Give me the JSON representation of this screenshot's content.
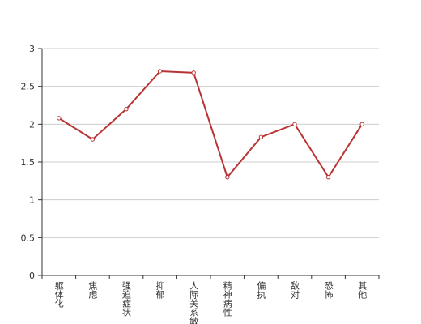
{
  "chart_data": {
    "type": "line",
    "categories": [
      "躯体化",
      "焦虑",
      "强迫症状",
      "抑郁",
      "人际关系敏感",
      "精神病性",
      "偏执",
      "敌对",
      "恐怖",
      "其他"
    ],
    "values": [
      2.08,
      1.8,
      2.2,
      2.7,
      2.68,
      1.3,
      1.83,
      2.0,
      1.3,
      2.0
    ],
    "color": "#b83434",
    "ylim": [
      0,
      3
    ],
    "yticks": [
      0,
      0.5,
      1,
      1.5,
      2,
      2.5,
      3
    ],
    "grid": true
  }
}
